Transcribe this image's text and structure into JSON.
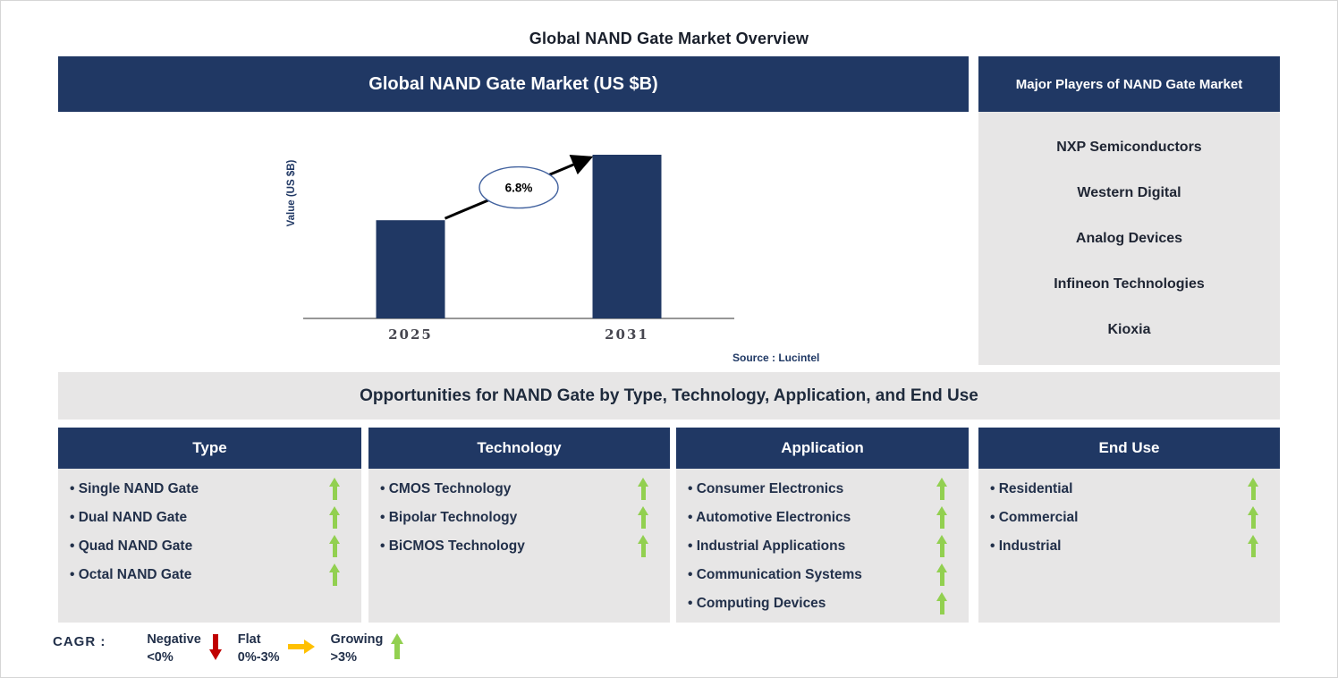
{
  "page": {
    "title": "Global NAND Gate Market Overview"
  },
  "chart_panel": {
    "header": "Global NAND Gate Market (US $B)",
    "source": "Source : Lucintel"
  },
  "chart_data": {
    "type": "bar",
    "title": "Global NAND Gate Market (US $B)",
    "categories": [
      "2025",
      "2031"
    ],
    "values": [
      60,
      100
    ],
    "ylabel": "Value (US $B)",
    "cagr_annotation": "6.8%",
    "bar_color": "#203864",
    "axis_note": "no numeric y-axis shown; values are relative bar heights (2031 = 100)"
  },
  "players_panel": {
    "header": "Major Players of NAND Gate Market",
    "companies": [
      "NXP Semiconductors",
      "Western Digital",
      "Analog Devices",
      "Infineon Technologies",
      "Kioxia"
    ]
  },
  "opportunities": {
    "banner": "Opportunities for NAND Gate by Type, Technology, Application, and End Use",
    "columns": [
      {
        "header": "Type",
        "items": [
          "Single NAND Gate",
          "Dual NAND Gate",
          "Quad NAND Gate",
          "Octal NAND Gate"
        ]
      },
      {
        "header": "Technology",
        "items": [
          "CMOS Technology",
          "Bipolar Technology",
          "BiCMOS Technology"
        ]
      },
      {
        "header": "Application",
        "items": [
          "Consumer Electronics",
          "Automotive Electronics",
          "Industrial Applications",
          "Communication Systems",
          "Computing Devices"
        ]
      },
      {
        "header": "End Use",
        "items": [
          "Residential",
          "Commercial",
          "Industrial"
        ]
      }
    ],
    "trend_icon": "up-arrow-icon"
  },
  "legend": {
    "label": "CAGR :",
    "entries": [
      {
        "name": "Negative",
        "range": "<0%",
        "icon": "down-arrow-icon"
      },
      {
        "name": "Flat",
        "range": "0%-3%",
        "icon": "right-arrow-icon"
      },
      {
        "name": "Growing",
        "range": ">3%",
        "icon": "up-arrow-icon"
      }
    ]
  },
  "colors": {
    "navy": "#203864",
    "panel_gray": "#E7E6E6",
    "growth_green": "#92D050",
    "negative_red": "#C00000",
    "flat_yellow": "#FFC000",
    "source_navy": "#1F3864"
  }
}
